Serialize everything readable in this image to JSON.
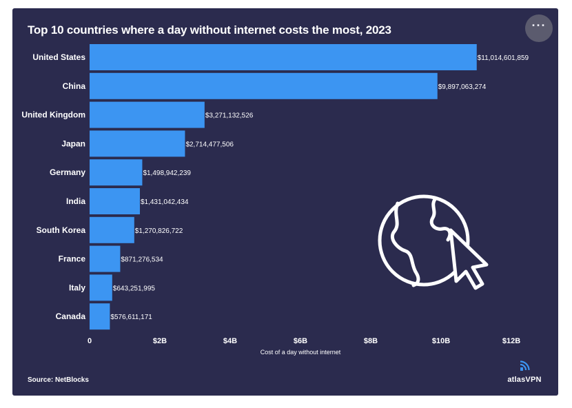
{
  "title": "Top 10 countries where a day without internet costs the most, 2023",
  "menu_icon": "more-horizontal-icon",
  "source": "Source: NetBlocks",
  "brand": {
    "name": "atlasVPN",
    "icon": "atlasvpn-logo-icon"
  },
  "globe_icon": "globe-with-cursor-icon",
  "colors": {
    "background": "#2b2b4e",
    "bar": "#3c95f2",
    "text": "#ffffff"
  },
  "chart_data": {
    "type": "bar",
    "orientation": "horizontal",
    "title": "Top 10 countries where a day without internet costs the most, 2023",
    "xlabel": "Cost of a day without internet",
    "ylabel": "",
    "categories": [
      "United States",
      "China",
      "United Kingdom",
      "Japan",
      "Germany",
      "India",
      "South Korea",
      "France",
      "Italy",
      "Canada"
    ],
    "values": [
      11014601859,
      9897063274,
      3271132526,
      2714477506,
      1498942239,
      1431042434,
      1270826722,
      871276534,
      643251995,
      576611171
    ],
    "value_labels": [
      "$11,014,601,859",
      "$9,897,063,274",
      "$3,271,132,526",
      "$2,714,477,506",
      "$1,498,942,239",
      "$1,431,042,434",
      "$1,270,826,722",
      "$871,276,534",
      "$643,251,995",
      "$576,611,171"
    ],
    "xticks": [
      0,
      2000000000,
      4000000000,
      6000000000,
      8000000000,
      10000000000,
      12000000000
    ],
    "xtick_labels": [
      "0",
      "$2B",
      "$4B",
      "$6B",
      "$8B",
      "$10B",
      "$12B"
    ],
    "xlim": [
      0,
      12000000000
    ],
    "grid": false,
    "legend": "none"
  }
}
